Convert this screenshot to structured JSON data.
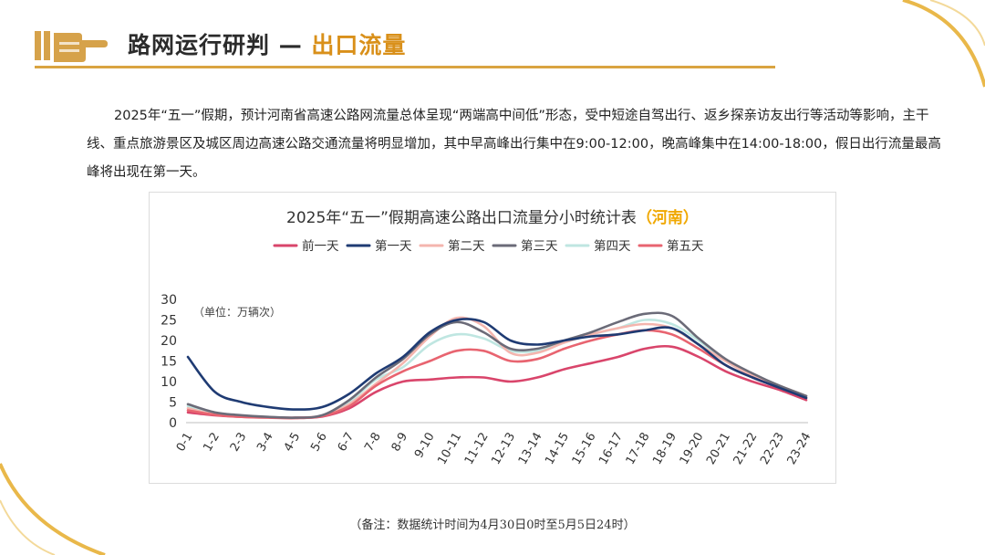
{
  "header": {
    "title_main": "路网运行研判 — ",
    "title_accent": "出口流量",
    "accent_color": "#d9901a",
    "icon": "pointing-hand-icon"
  },
  "intro": {
    "paragraph": "2025年“五一”假期，预计河南省高速公路网流量总体呈现“两端高中间低”形态，受中短途自驾出行、返乡探亲访友出行等活动等影响，主干线、重点旅游景区及城区周边高速公路交通流量将明显增加，其中早高峰出行集中在9:00-12:00，晚高峰集中在14:00-18:00，假日出行流量最高峰将出现在第一天。"
  },
  "chart_data": {
    "type": "line",
    "title": "2025年“五一”假期高速公路出口流量分小时统计表",
    "title_highlight": "（河南）",
    "title_highlight_color": "#f0a800",
    "unit_note": "（单位：万辆次）",
    "ylim": [
      0,
      30
    ],
    "yticks": [
      "0",
      "5",
      "10",
      "15",
      "20",
      "25",
      "30"
    ],
    "grid": false,
    "legend_position": "top",
    "categories": [
      "0-1",
      "1-2",
      "2-3",
      "3-4",
      "4-5",
      "5-6",
      "6-7",
      "7-8",
      "8-9",
      "9-10",
      "10-11",
      "11-12",
      "12-13",
      "13-14",
      "14-15",
      "15-16",
      "16-17",
      "17-18",
      "18-19",
      "19-20",
      "20-21",
      "21-22",
      "22-23",
      "23-24"
    ],
    "series": [
      {
        "name": "前一天",
        "color": "#d9456b",
        "values": [
          2.5,
          1.8,
          1.4,
          1.3,
          1.2,
          1.5,
          3.5,
          7.5,
          10,
          10.5,
          11,
          11,
          10,
          11,
          13,
          14.5,
          16,
          18,
          18.5,
          16,
          12.5,
          10,
          8,
          5.5
        ]
      },
      {
        "name": "第一天",
        "color": "#1f3b73",
        "values": [
          16,
          7.5,
          5,
          3.8,
          3.2,
          3.8,
          7,
          12,
          16,
          22,
          25,
          24.5,
          20,
          19,
          20,
          21,
          21.5,
          22.5,
          23,
          19,
          14,
          11,
          8.5,
          6
        ]
      },
      {
        "name": "第二天",
        "color": "#f4b5ae",
        "values": [
          3.5,
          2,
          1.5,
          1.3,
          1.2,
          1.7,
          4.5,
          9.5,
          14.5,
          21,
          25.5,
          23.5,
          17,
          17,
          19.5,
          21.5,
          23,
          24,
          23,
          19,
          15,
          11.5,
          9,
          6.5
        ]
      },
      {
        "name": "第三天",
        "color": "#6b6b78",
        "values": [
          4.5,
          2.5,
          1.8,
          1.4,
          1.2,
          1.8,
          5.5,
          11,
          15.5,
          21.5,
          24.5,
          22,
          18,
          18,
          20,
          22,
          24.5,
          26.5,
          26,
          20.5,
          15.5,
          12,
          9,
          6.5
        ]
      },
      {
        "name": "第四天",
        "color": "#bfe6e1",
        "values": [
          4,
          2.2,
          1.6,
          1.3,
          1.2,
          1.7,
          5,
          10.5,
          13.5,
          19,
          21.5,
          20.5,
          17.5,
          17.5,
          19.5,
          21.5,
          23,
          25,
          24,
          20,
          15,
          11.5,
          9,
          6.5
        ]
      },
      {
        "name": "第五天",
        "color": "#e86470",
        "values": [
          3,
          1.9,
          1.4,
          1.2,
          1.1,
          1.6,
          4,
          9,
          12.5,
          15,
          17.5,
          17.5,
          15,
          15.5,
          18,
          20,
          21.5,
          22.5,
          21.5,
          18,
          14,
          11,
          8.5,
          6
        ]
      }
    ]
  },
  "footnote": "（备注：数据统计时间为4月30日0时至5月5日24时）"
}
